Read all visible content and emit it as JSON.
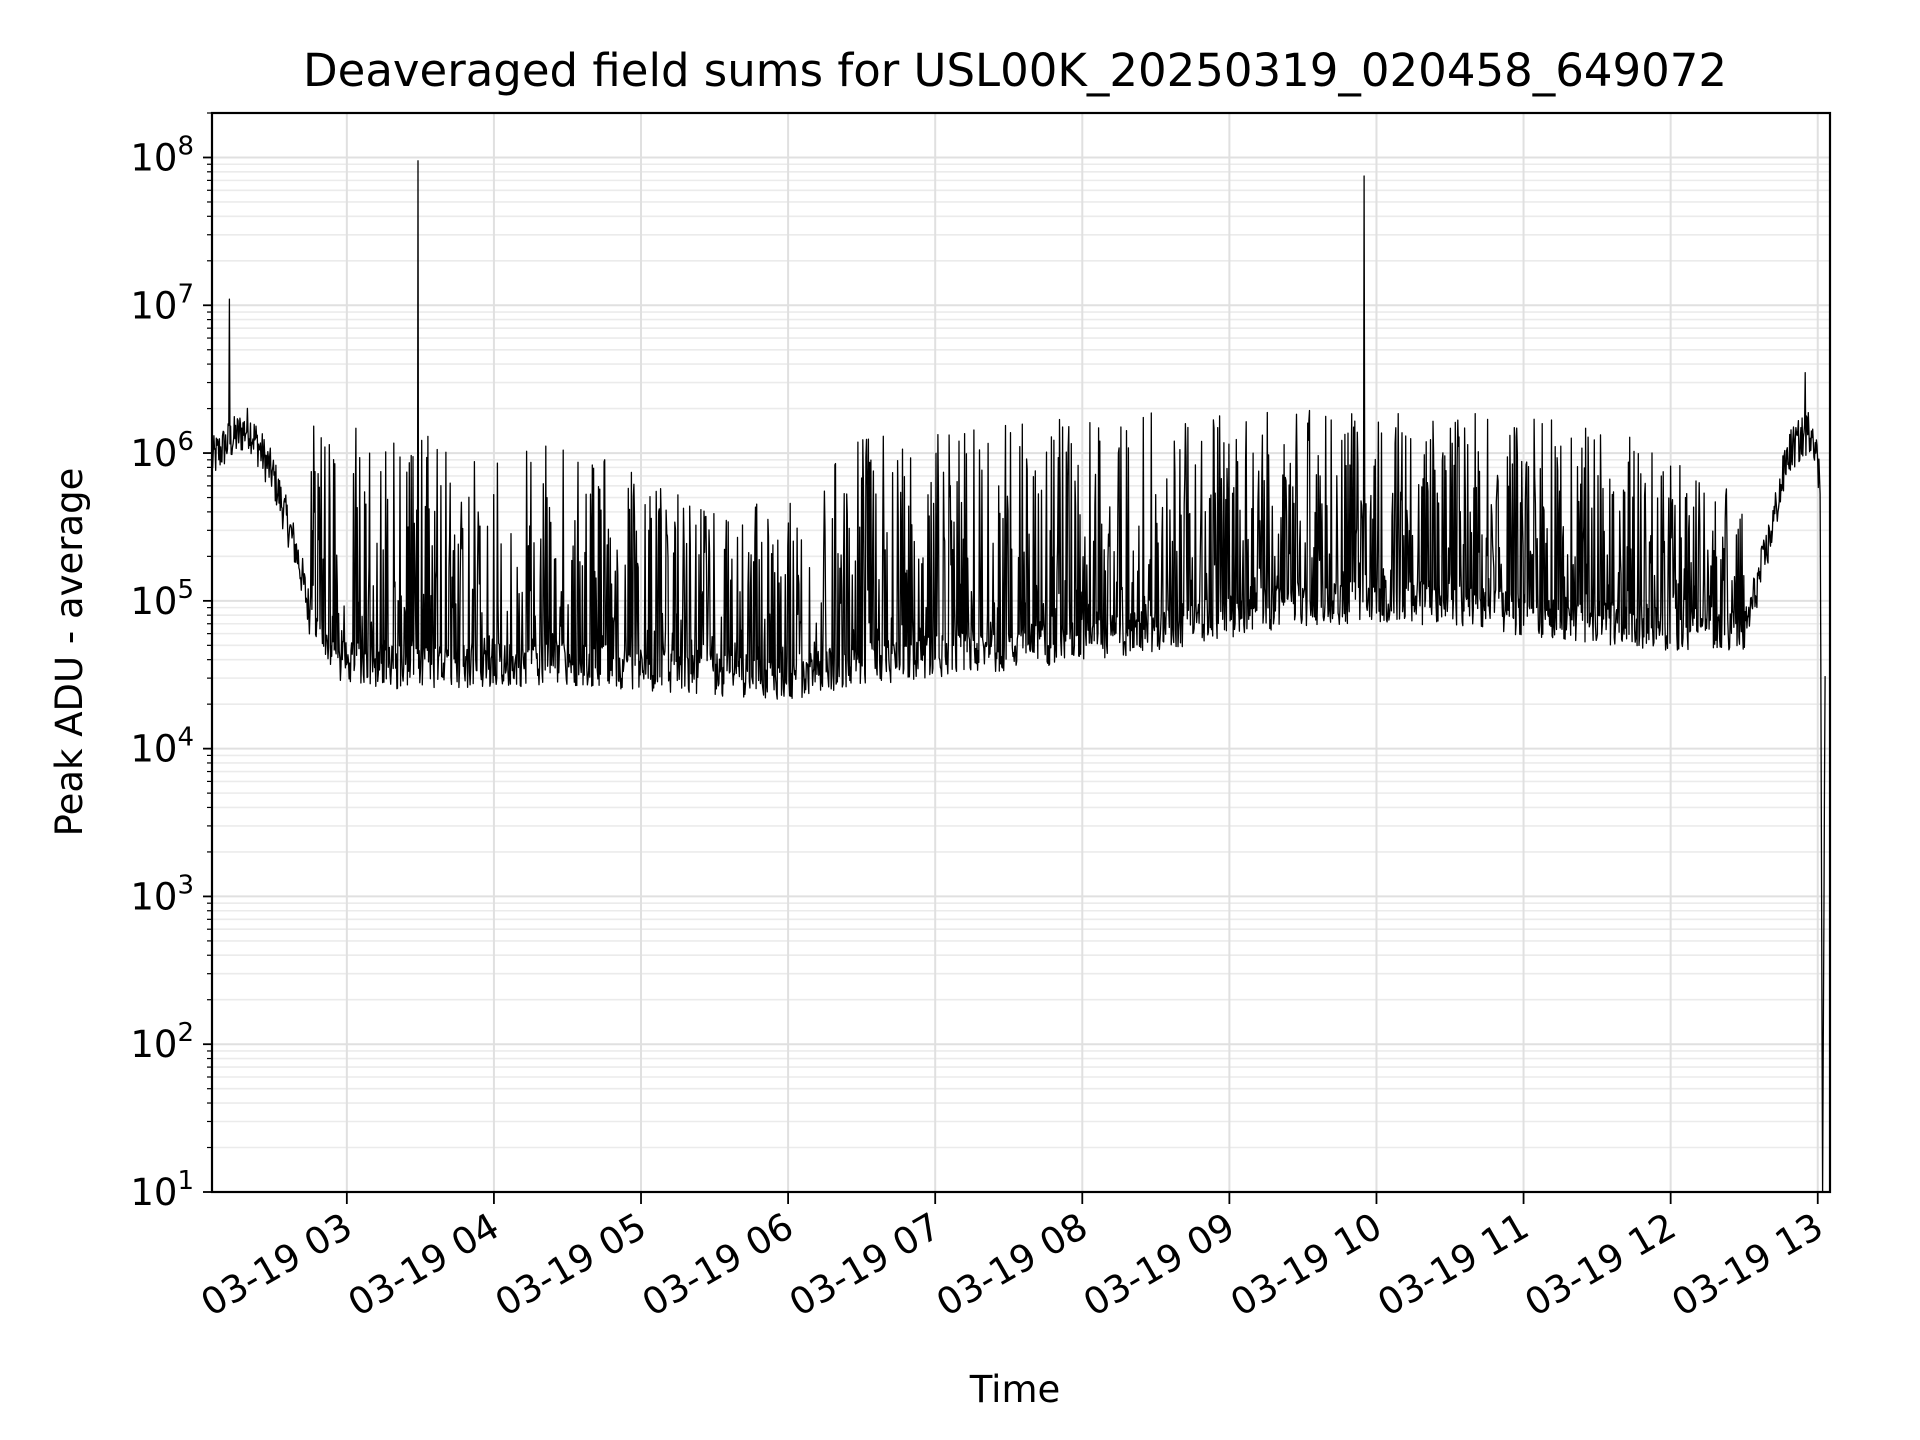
{
  "chart_data": {
    "type": "line",
    "title": "Deaveraged field sums for USL00K_20250319_020458_649072",
    "xlabel": "Time",
    "ylabel": "Peak ADU - average",
    "yscale": "log",
    "ylim": [
      10,
      200000000
    ],
    "xlim": [
      "03-19 02:05",
      "03-19 13:05"
    ],
    "grid": true,
    "line_color": "#000000",
    "x_ticks": [
      "03-19 03",
      "03-19 04",
      "03-19 05",
      "03-19 06",
      "03-19 07",
      "03-19 08",
      "03-19 09",
      "03-19 10",
      "03-19 11",
      "03-19 12",
      "03-19 13"
    ],
    "y_ticks": [
      {
        "value": 10,
        "base": "10",
        "exp": "1"
      },
      {
        "value": 100,
        "base": "10",
        "exp": "2"
      },
      {
        "value": 1000,
        "base": "10",
        "exp": "3"
      },
      {
        "value": 10000,
        "base": "10",
        "exp": "4"
      },
      {
        "value": 100000,
        "base": "10",
        "exp": "5"
      },
      {
        "value": 1000000,
        "base": "10",
        "exp": "6"
      },
      {
        "value": 10000000,
        "base": "10",
        "exp": "7"
      },
      {
        "value": 100000000,
        "base": "10",
        "exp": "8"
      }
    ],
    "series": [
      {
        "baseline": [
          {
            "x": "03-19 02:05",
            "y": 900000
          },
          {
            "x": "03-19 02:12",
            "y": 1200000
          },
          {
            "x": "03-19 02:20",
            "y": 1500000
          },
          {
            "x": "03-19 02:30",
            "y": 700000
          },
          {
            "x": "03-19 02:40",
            "y": 200000
          },
          {
            "x": "03-19 02:45",
            "y": 80000
          },
          {
            "x": "03-19 02:55",
            "y": 38000
          },
          {
            "x": "03-19 03:30",
            "y": 35000
          },
          {
            "x": "03-19 04:30",
            "y": 38000
          },
          {
            "x": "03-19 05:00",
            "y": 35000
          },
          {
            "x": "03-19 05:30",
            "y": 32000
          },
          {
            "x": "03-19 06:00",
            "y": 30000
          },
          {
            "x": "03-19 06:30",
            "y": 38000
          },
          {
            "x": "03-19 07:00",
            "y": 42000
          },
          {
            "x": "03-19 07:30",
            "y": 48000
          },
          {
            "x": "03-19 08:00",
            "y": 55000
          },
          {
            "x": "03-19 08:30",
            "y": 62000
          },
          {
            "x": "03-19 09:00",
            "y": 80000
          },
          {
            "x": "03-19 09:30",
            "y": 95000
          },
          {
            "x": "03-19 10:00",
            "y": 100000
          },
          {
            "x": "03-19 10:30",
            "y": 95000
          },
          {
            "x": "03-19 11:00",
            "y": 80000
          },
          {
            "x": "03-19 11:30",
            "y": 72000
          },
          {
            "x": "03-19 12:00",
            "y": 65000
          },
          {
            "x": "03-19 12:30",
            "y": 60000
          },
          {
            "x": "03-19 12:40",
            "y": 250000
          },
          {
            "x": "03-19 12:48",
            "y": 1000000
          },
          {
            "x": "03-19 12:58",
            "y": 1500000
          },
          {
            "x": "03-19 13:01",
            "y": 600000
          },
          {
            "x": "03-19 13:02",
            "y": 10
          },
          {
            "x": "03-19 13:03",
            "y": 40000
          }
        ],
        "envelope_max": [
          {
            "x": "03-19 02:45",
            "y": 1600000
          },
          {
            "x": "03-19 03:30",
            "y": 1400000
          },
          {
            "x": "03-19 04:30",
            "y": 1200000
          },
          {
            "x": "03-19 05:00",
            "y": 700000
          },
          {
            "x": "03-19 05:30",
            "y": 400000
          },
          {
            "x": "03-19 06:00",
            "y": 500000
          },
          {
            "x": "03-19 06:30",
            "y": 1400000
          },
          {
            "x": "03-19 07:30",
            "y": 1700000
          },
          {
            "x": "03-19 08:30",
            "y": 1900000
          },
          {
            "x": "03-19 09:30",
            "y": 2000000
          },
          {
            "x": "03-19 10:30",
            "y": 1900000
          },
          {
            "x": "03-19 11:30",
            "y": 1700000
          },
          {
            "x": "03-19 12:00",
            "y": 900000
          },
          {
            "x": "03-19 12:30",
            "y": 600000
          }
        ],
        "spikes": [
          {
            "x": "03-19 02:12",
            "y": 11000000
          },
          {
            "x": "03-19 03:29",
            "y": 95000000
          },
          {
            "x": "03-19 09:55",
            "y": 75000000
          },
          {
            "x": "03-19 12:55",
            "y": 3500000
          }
        ]
      }
    ]
  }
}
